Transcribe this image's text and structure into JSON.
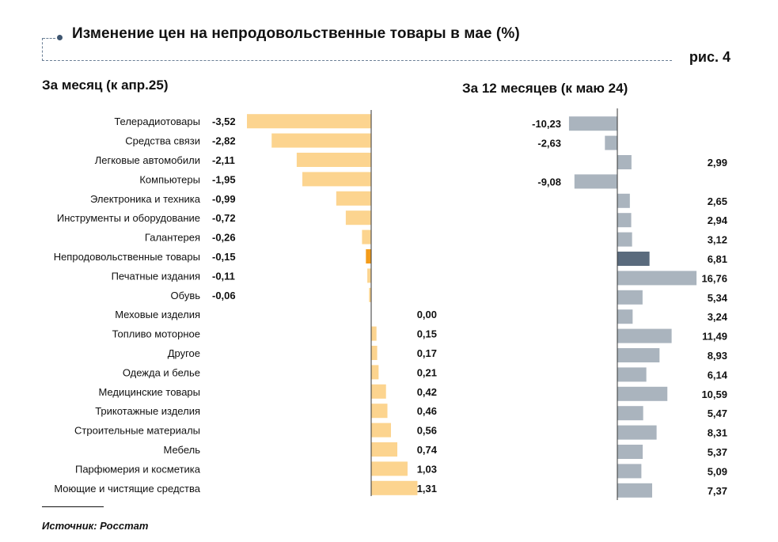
{
  "header": {
    "title": "Изменение цен на непродовольственные товары в мае (%)",
    "figure_label": "рис. 4"
  },
  "source": "Источник: Росстат",
  "colors": {
    "left_bar": "#fcd48f",
    "left_highlight": "#f39c1a",
    "right_bar": "#aab4be",
    "right_highlight": "#5a6b7d",
    "axis": "#333333"
  },
  "chart_data": [
    {
      "type": "bar",
      "orientation": "horizontal",
      "title": "За месяц (к апр.25)",
      "highlight": "Непродовольственные товары",
      "xlim": [
        -3.52,
        1.31
      ],
      "categories": [
        "Телерадиотовары",
        "Средства связи",
        "Легковые автомобили",
        "Компьютеры",
        "Электроника и техника",
        "Инструменты и оборудование",
        "Галантерея",
        "Непродовольственные товары",
        "Печатные издания",
        "Обувь",
        "Меховые изделия",
        "Топливо моторное",
        "Другое",
        "Одежда и белье",
        "Медицинские товары",
        "Трикотажные изделия",
        "Строительные материалы",
        "Мебель",
        "Парфюмерия и косметика",
        "Моющие и чистящие средства"
      ],
      "values": [
        -3.52,
        -2.82,
        -2.11,
        -1.95,
        -0.99,
        -0.72,
        -0.26,
        -0.15,
        -0.11,
        -0.06,
        0.0,
        0.15,
        0.17,
        0.21,
        0.42,
        0.46,
        0.56,
        0.74,
        1.03,
        1.31
      ],
      "labels": [
        "-3,52",
        "-2,82",
        "-2,11",
        "-1,95",
        "-0,99",
        "-0,72",
        "-0,26",
        "-0,15",
        "-0,11",
        "-0,06",
        "0,00",
        "0,15",
        "0,17",
        "0,21",
        "0,42",
        "0,46",
        "0,56",
        "0,74",
        "1,03",
        "1,31"
      ]
    },
    {
      "type": "bar",
      "orientation": "horizontal",
      "title": "За 12 месяцев (к маю 24)",
      "highlight": "Непродовольственные товары",
      "xlim": [
        -10.23,
        16.76
      ],
      "categories": [
        "Телерадиотовары",
        "Средства связи",
        "Легковые автомобили",
        "Компьютеры",
        "Электроника и техника",
        "Инструменты и оборудование",
        "Галантерея",
        "Непродовольственные товары",
        "Печатные издания",
        "Обувь",
        "Меховые изделия",
        "Топливо моторное",
        "Другое",
        "Одежда и белье",
        "Медицинские товары",
        "Трикотажные изделия",
        "Строительные материалы",
        "Мебель",
        "Парфюмерия и косметика",
        "Моющие и чистящие средства"
      ],
      "values": [
        -10.23,
        -2.63,
        2.99,
        -9.08,
        2.65,
        2.94,
        3.12,
        6.81,
        16.76,
        5.34,
        3.24,
        11.49,
        8.93,
        6.14,
        10.59,
        5.47,
        8.31,
        5.37,
        5.09,
        7.37
      ],
      "labels": [
        "-10,23",
        "-2,63",
        "2,99",
        "-9,08",
        "2,65",
        "2,94",
        "3,12",
        "6,81",
        "16,76",
        "5,34",
        "3,24",
        "11,49",
        "8,93",
        "6,14",
        "10,59",
        "5,47",
        "8,31",
        "5,37",
        "5,09",
        "7,37"
      ]
    }
  ]
}
